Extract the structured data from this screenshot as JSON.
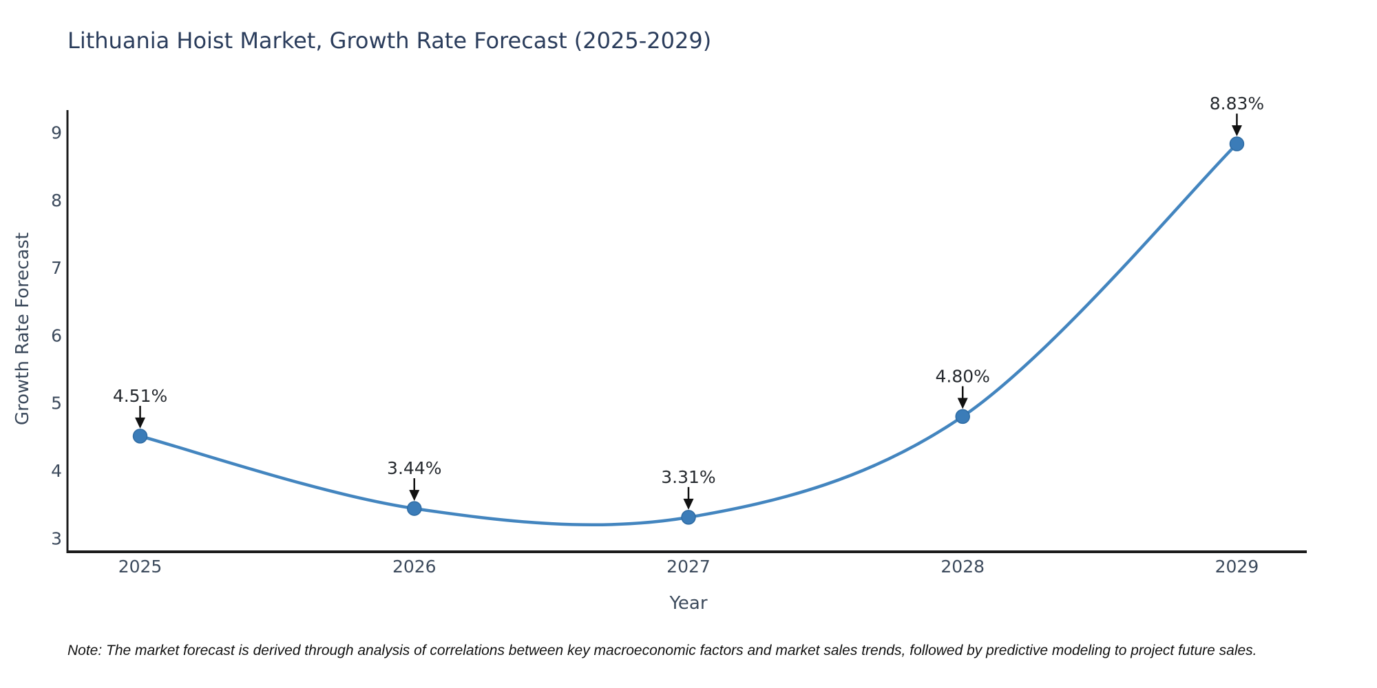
{
  "page": {
    "title": "Lithuania Hoist Market, Growth Rate Forecast (2025-2029)",
    "note": "Note: The market forecast is derived through analysis of correlations between key macroeconomic factors and market sales trends, followed by predictive modeling to project future sales."
  },
  "chart_data": {
    "type": "line",
    "title": "Lithuania Hoist Market, Growth Rate Forecast (2025-2029)",
    "xlabel": "Year",
    "ylabel": "Growth Rate Forecast",
    "x": [
      2025,
      2026,
      2027,
      2028,
      2029
    ],
    "y": [
      4.51,
      3.44,
      3.31,
      4.8,
      8.83
    ],
    "point_labels": [
      "4.51%",
      "3.44%",
      "3.31%",
      "4.80%",
      "8.83%"
    ],
    "x_tick_labels": [
      "2025",
      "2026",
      "2027",
      "2028",
      "2029"
    ],
    "y_tick_values": [
      3,
      4,
      5,
      6,
      7,
      8,
      9
    ],
    "y_tick_labels": [
      "3",
      "4",
      "5",
      "6",
      "7",
      "8",
      "9"
    ],
    "xlim": [
      2024.735,
      2029.255
    ],
    "ylim": [
      2.8,
      9.33
    ],
    "grid": false,
    "legend": null,
    "line_style": "smooth-spline",
    "marker_style": "circle",
    "annotation_style": "label-with-down-arrow",
    "colors": {
      "line": "#4385bf",
      "marker_fill": "#3b7cb8",
      "marker_edge": "#2e6ba3",
      "axis_spine": "#1c1c1c",
      "tick_text": "#3c4a5c",
      "annotation_text": "#25292e",
      "annotation_arrow": "#111111",
      "title_text": "#2b3d5c",
      "background": "#ffffff"
    }
  }
}
